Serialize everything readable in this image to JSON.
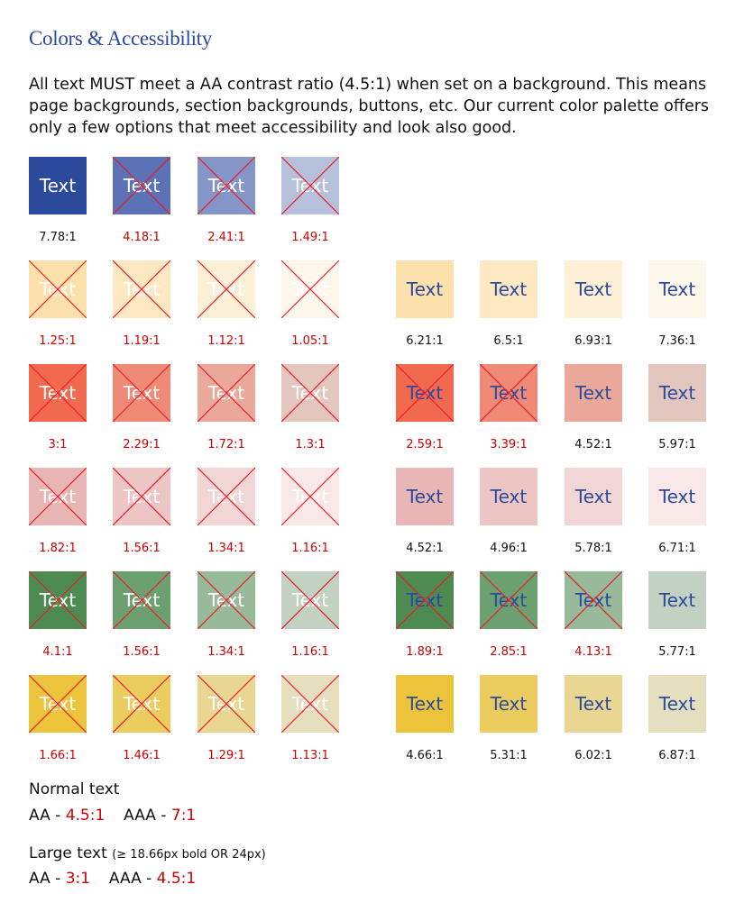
{
  "page": {
    "title": "Colors & Accessibility",
    "intro": "All text MUST meet a AA contrast ratio (4.5:1) when set on a background. This means page backgrounds, section backgrounds, buttons, etc. Our current color palette offers only a few options that meet accessibility and look also good."
  },
  "colors": {
    "fail_red": "#cc0000",
    "pass_text": "#111111",
    "white_text": "#ffffff",
    "blue_text": "#2c4a9c"
  },
  "swatch_label": "Text",
  "swatch_rows": [
    {
      "left": [
        {
          "bg": "#2c4a9c",
          "ratio": "7.78:1",
          "pass": true
        },
        {
          "bg": "#5b72b6",
          "ratio": "4.18:1",
          "pass": false
        },
        {
          "bg": "#8595c8",
          "ratio": "2.41:1",
          "pass": false
        },
        {
          "bg": "#b7c0da",
          "ratio": "1.49:1",
          "pass": false
        }
      ],
      "right": []
    },
    {
      "left": [
        {
          "bg": "#fde1ad",
          "ratio": "1.25:1",
          "pass": false
        },
        {
          "bg": "#fde8c2",
          "ratio": "1.19:1",
          "pass": false
        },
        {
          "bg": "#fef0d7",
          "ratio": "1.12:1",
          "pass": false
        },
        {
          "bg": "#fef8ec",
          "ratio": "1.05:1",
          "pass": false
        }
      ],
      "right": [
        {
          "bg": "#fde1ad",
          "ratio": "6.21:1",
          "pass": true
        },
        {
          "bg": "#fde8c2",
          "ratio": "6.5:1",
          "pass": true
        },
        {
          "bg": "#fef0d7",
          "ratio": "6.93:1",
          "pass": true
        },
        {
          "bg": "#fef8ec",
          "ratio": "7.36:1",
          "pass": true
        }
      ]
    },
    {
      "left": [
        {
          "bg": "#f16a50",
          "ratio": "3:1",
          "pass": false
        },
        {
          "bg": "#ee8a76",
          "ratio": "2.29:1",
          "pass": false
        },
        {
          "bg": "#eba99b",
          "ratio": "1.72:1",
          "pass": false
        },
        {
          "bg": "#e3c6be",
          "ratio": "1.3:1",
          "pass": false
        }
      ],
      "right": [
        {
          "bg": "#f16a50",
          "ratio": "2.59:1",
          "pass": false
        },
        {
          "bg": "#ee8a76",
          "ratio": "3.39:1",
          "pass": false
        },
        {
          "bg": "#eba99b",
          "ratio": "4.52:1",
          "pass": true
        },
        {
          "bg": "#e3c6be",
          "ratio": "5.97:1",
          "pass": true
        }
      ]
    },
    {
      "left": [
        {
          "bg": "#e8b6b4",
          "ratio": "1.82:1",
          "pass": false
        },
        {
          "bg": "#edc5c4",
          "ratio": "1.56:1",
          "pass": false
        },
        {
          "bg": "#f2d6d5",
          "ratio": "1.34:1",
          "pass": false
        },
        {
          "bg": "#f8e8e8",
          "ratio": "1.16:1",
          "pass": false
        }
      ],
      "right": [
        {
          "bg": "#e8b6b4",
          "ratio": "4.52:1",
          "pass": true
        },
        {
          "bg": "#edc5c4",
          "ratio": "4.96:1",
          "pass": true
        },
        {
          "bg": "#f2d6d5",
          "ratio": "5.78:1",
          "pass": true
        },
        {
          "bg": "#f8e8e8",
          "ratio": "6.71:1",
          "pass": true
        }
      ]
    },
    {
      "left": [
        {
          "bg": "#4d8b52",
          "ratio": "4.1:1",
          "pass": false
        },
        {
          "bg": "#6da071",
          "ratio": "1.56:1",
          "pass": false
        },
        {
          "bg": "#98b99a",
          "ratio": "1.34:1",
          "pass": false
        },
        {
          "bg": "#c3d1c3",
          "ratio": "1.16:1",
          "pass": false
        }
      ],
      "right": [
        {
          "bg": "#4d8b52",
          "ratio": "1.89:1",
          "pass": false
        },
        {
          "bg": "#6da071",
          "ratio": "2.85:1",
          "pass": false
        },
        {
          "bg": "#98b99a",
          "ratio": "4.13:1",
          "pass": false
        },
        {
          "bg": "#c3d1c3",
          "ratio": "5.77:1",
          "pass": true
        }
      ]
    },
    {
      "left": [
        {
          "bg": "#ecc43b",
          "ratio": "1.66:1",
          "pass": false
        },
        {
          "bg": "#ebcd5f",
          "ratio": "1.46:1",
          "pass": false
        },
        {
          "bg": "#e8d692",
          "ratio": "1.29:1",
          "pass": false
        },
        {
          "bg": "#e6dfbf",
          "ratio": "1.13:1",
          "pass": false
        }
      ],
      "right": [
        {
          "bg": "#ecc43b",
          "ratio": "4.66:1",
          "pass": true
        },
        {
          "bg": "#ebcd5f",
          "ratio": "5.31:1",
          "pass": true
        },
        {
          "bg": "#e8d692",
          "ratio": "6.02:1",
          "pass": true
        },
        {
          "bg": "#e6dfbf",
          "ratio": "6.87:1",
          "pass": true
        }
      ]
    }
  ],
  "legend": {
    "normal_heading": "Normal text",
    "normal_aa_label": "AA -",
    "normal_aa_value": "4.5:1",
    "normal_aaa_label": "AAA -",
    "normal_aaa_value": "7:1",
    "large_heading": "Large text",
    "large_note": "(≥ 18.66px bold OR 24px)",
    "large_aa_label": "AA -",
    "large_aa_value": "3:1",
    "large_aaa_label": "AAA -",
    "large_aaa_value": "4.5:1"
  }
}
